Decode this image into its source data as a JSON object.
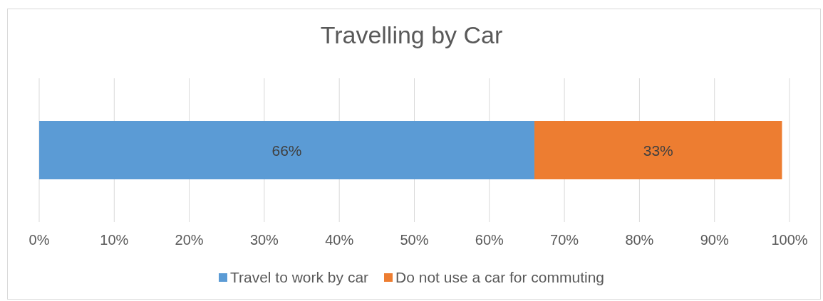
{
  "chart_data": {
    "type": "bar",
    "orientation": "horizontal",
    "stacked": true,
    "title": "Travelling by Car",
    "categories": [
      null
    ],
    "series": [
      {
        "name": "Travel to work by car",
        "color": "#5b9bd5",
        "values": [
          66
        ],
        "value_labels": [
          "66%"
        ]
      },
      {
        "name": "Do not use a car for commuting",
        "color": "#ed7d31",
        "values": [
          33
        ],
        "value_labels": [
          "33%"
        ]
      }
    ],
    "xlim": [
      0,
      100
    ],
    "xticks": [
      {
        "value": 0,
        "label": "0%"
      },
      {
        "value": 10,
        "label": "10%"
      },
      {
        "value": 20,
        "label": "20%"
      },
      {
        "value": 30,
        "label": "30%"
      },
      {
        "value": 40,
        "label": "40%"
      },
      {
        "value": 50,
        "label": "50%"
      },
      {
        "value": 60,
        "label": "60%"
      },
      {
        "value": 70,
        "label": "70%"
      },
      {
        "value": 80,
        "label": "80%"
      },
      {
        "value": 90,
        "label": "90%"
      },
      {
        "value": 100,
        "label": "100%"
      }
    ],
    "grid": "x",
    "legend": "bottom"
  }
}
